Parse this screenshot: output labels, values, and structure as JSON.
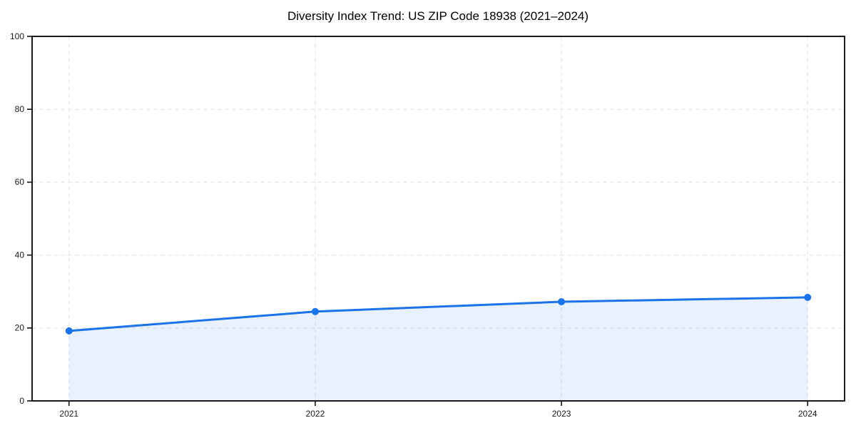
{
  "chart_data": {
    "type": "line",
    "title": "Diversity Index Trend: US ZIP Code 18938 (2021–2024)",
    "x": [
      2021,
      2022,
      2023,
      2024
    ],
    "x_tick_labels": [
      "2021",
      "2022",
      "2023",
      "2024"
    ],
    "series": [
      {
        "name": "Diversity Index",
        "values": [
          19.2,
          24.5,
          27.2,
          28.4
        ]
      }
    ],
    "xlabel": "",
    "ylabel": "",
    "ylim": [
      0,
      100
    ],
    "yticks": [
      0,
      20,
      40,
      60,
      80,
      100
    ],
    "x_margin": 0.15,
    "area_fill": true,
    "grid": {
      "visible": true,
      "style": "dashed",
      "color": "#e2e2e2"
    },
    "legend": {
      "visible": false
    },
    "colors": {
      "line": "#1a73e8",
      "marker": "#1a73e8",
      "fill": "#1a73e8",
      "fill_opacity": 0.1,
      "spine": "#000000",
      "tick_label": "#1a1a1a",
      "title": "#000000",
      "background": "#ffffff"
    }
  }
}
